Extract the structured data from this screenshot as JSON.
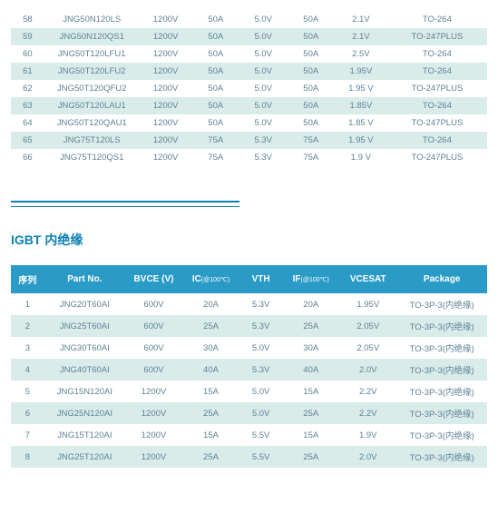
{
  "table1": {
    "col_widths": [
      "7%",
      "20%",
      "11%",
      "10%",
      "10%",
      "10%",
      "11%",
      "21%"
    ],
    "row_colors": {
      "odd": "#ffffff",
      "even": "#d9ecea"
    },
    "text_color": "#5f8296",
    "rows": [
      [
        "58",
        "JNG50N120LS",
        "1200V",
        "50A",
        "5.0V",
        "50A",
        "2.1V",
        "TO-264"
      ],
      [
        "59",
        "JNG50N120QS1",
        "1200V",
        "50A",
        "5.0V",
        "50A",
        "2.1V",
        "TO-247PLUS"
      ],
      [
        "60",
        "JNG50T120LFU1",
        "1200V",
        "50A",
        "5.0V",
        "50A",
        "2.5V",
        "TO-264"
      ],
      [
        "61",
        "JNG50T120LFU2",
        "1200V",
        "50A",
        "5.0V",
        "50A",
        "1.95V",
        "TO-264"
      ],
      [
        "62",
        "JNG50T120QFU2",
        "1200V",
        "50A",
        "5.0V",
        "50A",
        "1.95 V",
        "TO-247PLUS"
      ],
      [
        "63",
        "JNG50T120LAU1",
        "1200V",
        "50A",
        "5.0V",
        "50A",
        "1.85V",
        "TO-264"
      ],
      [
        "64",
        "JNG50T120QAU1",
        "1200V",
        "50A",
        "5.0V",
        "50A",
        "1.85 V",
        "TO-247PLUS"
      ],
      [
        "65",
        "JNG75T120LS",
        "1200V",
        "75A",
        "5.3V",
        "75A",
        "1.95 V",
        "TO-264"
      ],
      [
        "66",
        "JNG75T120QS1",
        "1200V",
        "75A",
        "5.3V",
        "75A",
        "1.9 V",
        "TO-247PLUS"
      ]
    ]
  },
  "divider_color": "#0d7fb3",
  "section_title": "IGBT 内绝缘",
  "table2": {
    "header_bg": "#2a9bc7",
    "header_color": "#ffffff",
    "col_widths": [
      "7%",
      "17%",
      "12%",
      "12%",
      "9%",
      "12%",
      "12%",
      "19%"
    ],
    "headers": [
      {
        "main": "序列",
        "sub": ""
      },
      {
        "main": "Part No.",
        "sub": ""
      },
      {
        "main": "BVCE (V)",
        "sub": ""
      },
      {
        "main": "IC",
        "sub": "(@100℃)"
      },
      {
        "main": "VTH",
        "sub": ""
      },
      {
        "main": "IF",
        "sub": "(@100℃)"
      },
      {
        "main": "VCESAT",
        "sub": ""
      },
      {
        "main": "Package",
        "sub": ""
      }
    ],
    "rows": [
      [
        "1",
        "JNG20T60AI",
        "600V",
        "20A",
        "5.3V",
        "20A",
        "1.95V",
        "TO-3P-3(内绝缘)"
      ],
      [
        "2",
        "JNG25T60AI",
        "600V",
        "25A",
        "5.3V",
        "25A",
        "2.05V",
        "TO-3P-3(内绝缘)"
      ],
      [
        "3",
        "JNG30T60AI",
        "600V",
        "30A",
        "5.0V",
        "30A",
        "2.05V",
        "TO-3P-3(内绝缘)"
      ],
      [
        "4",
        "JNG40T60AI",
        "600V",
        "40A",
        "5.3V",
        "40A",
        "2.0V",
        "TO-3P-3(内绝缘)"
      ],
      [
        "5",
        "JNG15N120AI",
        "1200V",
        "15A",
        "5.0V",
        "15A",
        "2.2V",
        "TO-3P-3(内绝缘)"
      ],
      [
        "6",
        "JNG25N120AI",
        "1200V",
        "25A",
        "5.0V",
        "25A",
        "2.2V",
        "TO-3P-3(内绝缘)"
      ],
      [
        "7",
        "JNG15T120AI",
        "1200V",
        "15A",
        "5.5V",
        "15A",
        "1.9V",
        "TO-3P-3(内绝缘)"
      ],
      [
        "8",
        "JNG25T120AI",
        "1200V",
        "25A",
        "5.5V",
        "25A",
        "2.0V",
        "TO-3P-3(内绝缘)"
      ]
    ]
  }
}
